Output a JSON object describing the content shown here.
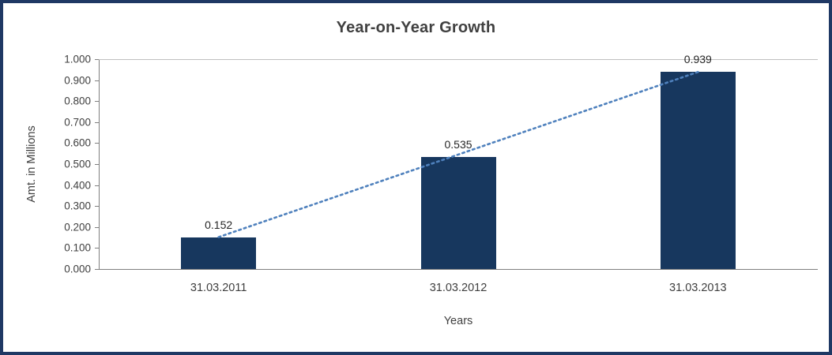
{
  "chart_data": {
    "type": "bar",
    "title": "Year-on-Year Growth",
    "xlabel": "Years",
    "ylabel": "Amt. in Millions",
    "categories": [
      "31.03.2011",
      "31.03.2012",
      "31.03.2013"
    ],
    "series": [
      {
        "name": "Amt. in Millions",
        "type": "bar",
        "values": [
          0.152,
          0.535,
          0.939
        ]
      },
      {
        "name": "linear-trendline",
        "type": "line",
        "style": "dotted",
        "values": [
          0.152,
          0.535,
          0.939
        ]
      }
    ],
    "data_labels": [
      "0.152",
      "0.535",
      "0.939"
    ],
    "yticks": [
      "0.000",
      "0.100",
      "0.200",
      "0.300",
      "0.400",
      "0.500",
      "0.600",
      "0.700",
      "0.800",
      "0.900",
      "1.000"
    ],
    "ylim": [
      0,
      1.0
    ],
    "grid": false,
    "legend": "none",
    "colors": {
      "bar": "#17375E",
      "trendline": "#4F81BD",
      "axis": "#7F7F7F",
      "text": "#3F3F3F",
      "title": "#404040",
      "frame_border": "#1F3864",
      "background": "#FFFFFF"
    }
  }
}
